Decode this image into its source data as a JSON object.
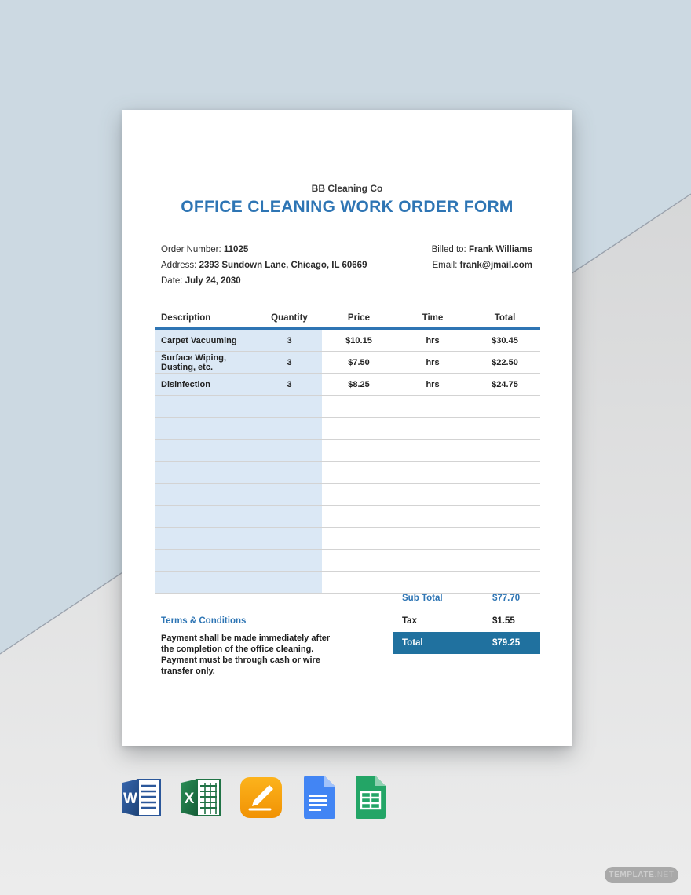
{
  "page": {
    "company_name": "BB Cleaning Co",
    "title": "OFFICE CLEANING WORK ORDER FORM",
    "info": {
      "order_number_label": "Order Number:",
      "order_number": "11025",
      "address_label": "Address:",
      "address": "2393 Sundown Lane, Chicago, IL 60669",
      "date_label": "Date:",
      "date": "July 24, 2030",
      "billed_to_label": "Billed to:",
      "billed_to": "Frank Williams",
      "email_label": "Email:",
      "email": "frank@jmail.com"
    },
    "table": {
      "headers": [
        "Description",
        "Quantity",
        "Price",
        "Time",
        "Total"
      ],
      "rows": [
        {
          "description": "Carpet Vacuuming",
          "quantity": "3",
          "price": "$10.15",
          "time": "hrs",
          "total": "$30.45"
        },
        {
          "description": "Surface Wiping, Dusting, etc.",
          "quantity": "3",
          "price": "$7.50",
          "time": "hrs",
          "total": "$22.50"
        },
        {
          "description": "Disinfection",
          "quantity": "3",
          "price": "$8.25",
          "time": "hrs",
          "total": "$24.75"
        }
      ],
      "empty_row_count": 9
    },
    "totals": {
      "subtotal_label": "Sub Total",
      "subtotal_value": "$77.70",
      "tax_label": "Tax",
      "tax_value": "$1.55",
      "total_label": "Total",
      "total_value": "$79.25"
    },
    "terms": {
      "heading": "Terms & Conditions",
      "lines": [
        "Payment shall be made immediately after the completion of the office cleaning.",
        "Payment must be through cash or wire transfer only."
      ]
    }
  },
  "footer": {
    "format_icons": [
      "microsoft-word",
      "microsoft-excel",
      "apple-pages",
      "google-docs",
      "google-sheets"
    ],
    "watermark_name": "TEMPLATE",
    "watermark_tld": ".NET"
  },
  "colors": {
    "accent_blue": "#2e75b4",
    "total_bar_blue": "#20719f",
    "table_cell_blue": "#dbe8f5",
    "background_blue": "#ccd9e2",
    "background_gray": "#e4e4e4",
    "word_blue": "#2b579a",
    "excel_green": "#217346",
    "pages_orange": "#f9a825",
    "docs_blue": "#4285f4",
    "sheets_green": "#23a566"
  }
}
